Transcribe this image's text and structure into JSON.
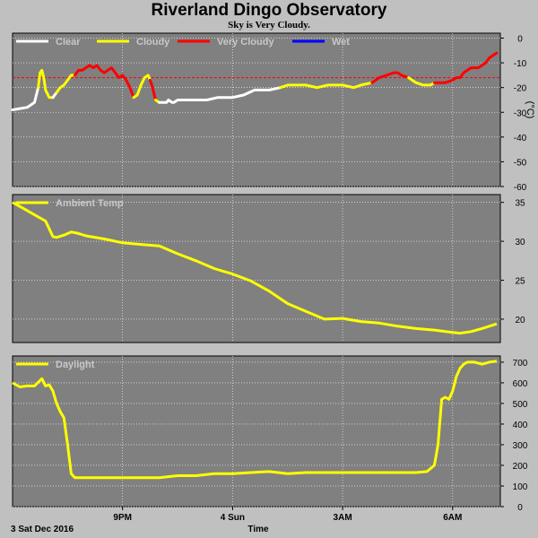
{
  "title": "Riverland Dingo Observatory",
  "subtitle": "Sky is Very Cloudy.",
  "x_axis": {
    "label": "Time",
    "date_label": "3 Sat Dec 2016",
    "ticks": [
      {
        "t": 3.0,
        "label": "9PM"
      },
      {
        "t": 6.0,
        "label": "4 Sun"
      },
      {
        "t": 9.0,
        "label": "3AM"
      },
      {
        "t": 12.0,
        "label": "6AM"
      }
    ],
    "range": [
      0,
      13.3
    ]
  },
  "chart_data": [
    {
      "type": "line",
      "name": "sky",
      "ylabel": "(°C)",
      "ylim": [
        -60,
        2
      ],
      "yticks": [
        0,
        -10,
        -20,
        -30,
        -40,
        -50,
        -60
      ],
      "threshold": -16,
      "grid": true,
      "legend": [
        {
          "label": "Clear",
          "color": "#ffffff"
        },
        {
          "label": "Cloudy",
          "color": "#ffff00"
        },
        {
          "label": "Very Cloudy",
          "color": "#ff0000"
        },
        {
          "label": "Wet",
          "color": "#0000ff"
        }
      ],
      "x": [
        0.0,
        0.4,
        0.6,
        0.7,
        0.75,
        0.8,
        0.85,
        0.9,
        1.0,
        1.1,
        1.2,
        1.3,
        1.4,
        1.5,
        1.6,
        1.7,
        1.8,
        1.9,
        2.0,
        2.1,
        2.2,
        2.3,
        2.4,
        2.5,
        2.6,
        2.7,
        2.8,
        2.9,
        3.0,
        3.1,
        3.2,
        3.3,
        3.4,
        3.5,
        3.6,
        3.7,
        3.75,
        3.8,
        3.9,
        4.0,
        4.1,
        4.2,
        4.25,
        4.35,
        4.4,
        4.5,
        4.6,
        4.8,
        5.0,
        5.3,
        5.6,
        6.0,
        6.3,
        6.6,
        7.0,
        7.3,
        7.5,
        8.0,
        8.3,
        8.6,
        9.0,
        9.3,
        9.5,
        9.8,
        10.0,
        10.2,
        10.4,
        10.5,
        10.6,
        10.8,
        11.0,
        11.2,
        11.4,
        11.5,
        11.6,
        11.8,
        12.0,
        12.1,
        12.2,
        12.3,
        12.5,
        12.7,
        12.9,
        13.0,
        13.1,
        13.2
      ],
      "y": [
        -29,
        -28,
        -26,
        -20,
        -14,
        -13,
        -16,
        -21,
        -24,
        -24,
        -22,
        -20,
        -19,
        -17,
        -15,
        -15,
        -13,
        -13,
        -12,
        -11,
        -12,
        -11,
        -13,
        -14,
        -13,
        -12,
        -14,
        -16,
        -15,
        -17,
        -20,
        -24,
        -23,
        -19,
        -16,
        -15,
        -17,
        -19,
        -25,
        -26,
        -26,
        -26,
        -25,
        -26,
        -26,
        -25,
        -25,
        -25,
        -25,
        -25,
        -24,
        -24,
        -23,
        -21,
        -21,
        -20,
        -19,
        -19,
        -20,
        -19,
        -19,
        -20,
        -19,
        -18,
        -16,
        -15,
        -14,
        -14,
        -15,
        -16,
        -18,
        -19,
        -19,
        -18,
        -18,
        -18,
        -17,
        -16,
        -16,
        -14,
        -12,
        -12,
        -10,
        -8,
        -7,
        -6
      ],
      "segments": [
        {
          "from": 0,
          "to": 3,
          "color": "#ffffff"
        },
        {
          "from": 3,
          "to": 9,
          "color": "#ffff00"
        },
        {
          "from": 9,
          "to": 10,
          "color": "#ffffff"
        },
        {
          "from": 10,
          "to": 15,
          "color": "#ffff00"
        },
        {
          "from": 15,
          "to": 31,
          "color": "#ff0000"
        },
        {
          "from": 31,
          "to": 36,
          "color": "#ffff00"
        },
        {
          "from": 36,
          "to": 38,
          "color": "#ff0000"
        },
        {
          "from": 38,
          "to": 39,
          "color": "#ffff00"
        },
        {
          "from": 39,
          "to": 55,
          "color": "#ffffff"
        },
        {
          "from": 55,
          "to": 63,
          "color": "#ffff00"
        },
        {
          "from": 63,
          "to": 69,
          "color": "#ff0000"
        },
        {
          "from": 69,
          "to": 73,
          "color": "#ffff00"
        },
        {
          "from": 73,
          "to": 85,
          "color": "#ff0000"
        }
      ]
    },
    {
      "type": "line",
      "name": "ambient",
      "ylim": [
        17,
        36
      ],
      "yticks": [
        35,
        30,
        25,
        20
      ],
      "grid": true,
      "legend": [
        {
          "label": "Ambient Temp",
          "color": "#ffff00"
        }
      ],
      "x": [
        0.0,
        0.3,
        0.6,
        0.9,
        1.0,
        1.1,
        1.2,
        1.4,
        1.6,
        1.8,
        2.0,
        2.5,
        3.0,
        3.5,
        4.0,
        4.5,
        5.0,
        5.5,
        6.0,
        6.5,
        7.0,
        7.5,
        8.0,
        8.5,
        9.0,
        9.5,
        10.0,
        10.5,
        11.0,
        11.5,
        12.0,
        12.2,
        12.5,
        12.8,
        13.0,
        13.2
      ],
      "y": [
        35.0,
        34.2,
        33.4,
        32.6,
        31.6,
        30.6,
        30.5,
        30.8,
        31.2,
        31.0,
        30.7,
        30.3,
        29.8,
        29.6,
        29.4,
        28.4,
        27.5,
        26.5,
        25.8,
        24.9,
        23.6,
        22.0,
        21.0,
        20.0,
        20.1,
        19.7,
        19.5,
        19.1,
        18.8,
        18.6,
        18.3,
        18.2,
        18.4,
        18.8,
        19.1,
        19.4
      ]
    },
    {
      "type": "line",
      "name": "daylight",
      "ylim": [
        0,
        730
      ],
      "yticks": [
        700,
        600,
        500,
        400,
        300,
        200,
        100,
        0
      ],
      "grid": true,
      "legend": [
        {
          "label": "Daylight",
          "color": "#ffff00"
        }
      ],
      "x": [
        0.0,
        0.2,
        0.4,
        0.6,
        0.8,
        0.9,
        1.0,
        1.1,
        1.2,
        1.3,
        1.4,
        1.5,
        1.6,
        1.7,
        1.8,
        2.0,
        2.5,
        3.0,
        3.5,
        4.0,
        4.5,
        5.0,
        5.5,
        6.0,
        6.5,
        7.0,
        7.5,
        8.0,
        8.5,
        9.0,
        9.5,
        10.0,
        10.5,
        11.0,
        11.3,
        11.5,
        11.6,
        11.7,
        11.8,
        11.9,
        12.0,
        12.1,
        12.2,
        12.3,
        12.4,
        12.6,
        12.8,
        13.0,
        13.2
      ],
      "y": [
        600,
        580,
        585,
        585,
        620,
        585,
        590,
        560,
        500,
        460,
        430,
        300,
        160,
        140,
        140,
        140,
        140,
        140,
        140,
        140,
        150,
        150,
        160,
        160,
        165,
        170,
        160,
        165,
        165,
        165,
        165,
        165,
        165,
        165,
        170,
        200,
        300,
        520,
        530,
        520,
        560,
        630,
        670,
        690,
        700,
        700,
        690,
        700,
        705
      ]
    }
  ]
}
